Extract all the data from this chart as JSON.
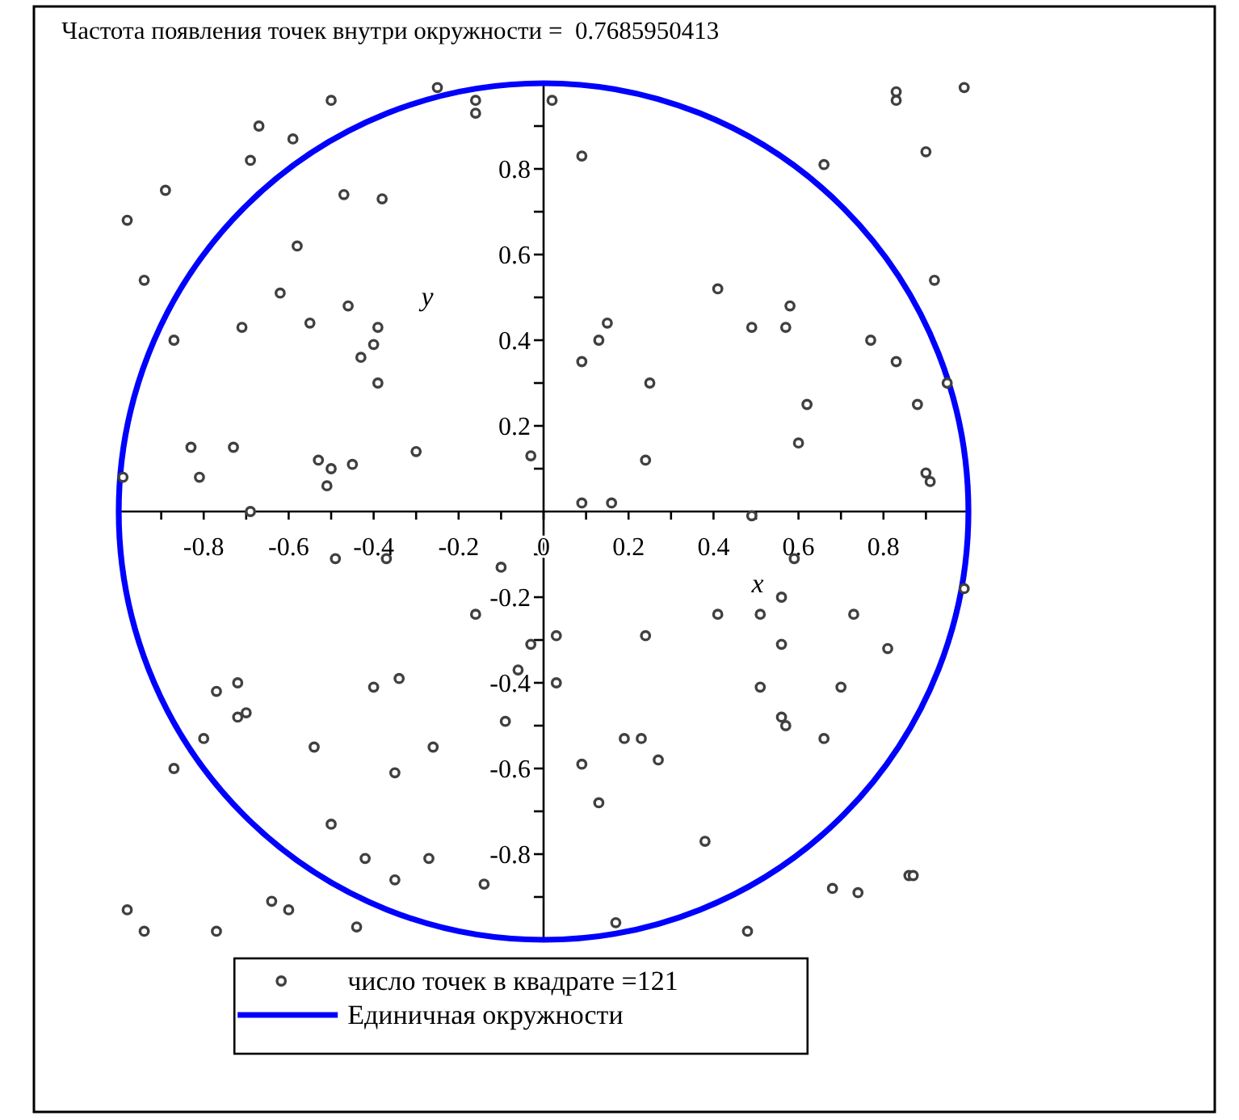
{
  "chart_data": {
    "type": "scatter",
    "title": "Частота появления точек внутри окружности =  0.7685950413",
    "xlabel": "x",
    "ylabel": "y",
    "xlim": [
      -1,
      1
    ],
    "ylim": [
      -1,
      1
    ],
    "xticks": [
      {
        "value": -0.9,
        "label": null
      },
      -0.8,
      {
        "value": -0.7,
        "label": null
      },
      -0.6,
      {
        "value": -0.5,
        "label": null
      },
      -0.4,
      {
        "value": -0.3,
        "label": null
      },
      -0.2,
      {
        "value": -0.1,
        "label": null
      },
      0,
      {
        "value": 0.1,
        "label": null
      },
      0.2,
      {
        "value": 0.3,
        "label": null
      },
      0.4,
      {
        "value": 0.5,
        "label": null
      },
      0.6,
      {
        "value": 0.7,
        "label": null
      },
      0.8,
      {
        "value": 0.9,
        "label": null
      }
    ],
    "yticks": [
      {
        "value": -0.9,
        "label": null
      },
      -0.8,
      {
        "value": -0.7,
        "label": null
      },
      -0.6,
      {
        "value": -0.5,
        "label": null
      },
      -0.4,
      {
        "value": -0.3,
        "label": null
      },
      -0.2,
      {
        "value": -0.1,
        "label": null
      },
      {
        "value": 0.1,
        "label": null
      },
      0.2,
      {
        "value": 0.3,
        "label": null
      },
      0.4,
      {
        "value": 0.5,
        "label": null
      },
      0.6,
      {
        "value": 0.7,
        "label": null
      },
      0.8,
      {
        "value": 0.9,
        "label": null
      }
    ],
    "marker": "circle",
    "legend": "bottom",
    "series": [
      {
        "name": "число точек в квадрате =121",
        "color": "#404040",
        "x": [
          -0.25,
          -0.5,
          -0.16,
          -0.16,
          -0.67,
          -0.59,
          -0.69,
          -0.89,
          -0.47,
          -0.38,
          -0.98,
          -0.58,
          -0.94,
          -0.62,
          -0.46,
          -0.71,
          -0.55,
          -0.39,
          -0.87,
          -0.4,
          -0.43,
          -0.39,
          -0.83,
          -0.73,
          -0.3,
          -0.03,
          -0.53,
          -0.5,
          -0.45,
          -0.51,
          -0.81,
          -0.99,
          -0.69,
          0.02,
          0.83,
          0.83,
          0.99,
          0.9,
          0.09,
          0.66,
          0.92,
          0.41,
          0.58,
          0.49,
          0.57,
          0.77,
          0.15,
          0.13,
          0.09,
          0.83,
          0.25,
          0.95,
          0.62,
          0.88,
          0.24,
          0.6,
          0.9,
          0.91,
          0.09,
          0.16,
          0.49,
          -0.49,
          -0.37,
          -0.1,
          -0.16,
          -0.03,
          -0.06,
          -0.34,
          -0.4,
          -0.72,
          -0.77,
          -0.72,
          -0.7,
          -0.8,
          -0.87,
          -0.54,
          -0.26,
          -0.09,
          -0.35,
          -0.5,
          -0.42,
          -0.27,
          -0.35,
          -0.14,
          -0.64,
          -0.6,
          -0.98,
          -0.94,
          -0.77,
          -0.44,
          0.59,
          0.99,
          0.56,
          0.41,
          0.51,
          0.73,
          0.03,
          0.24,
          0.56,
          0.81,
          0.03,
          0.51,
          0.7,
          0.56,
          0.57,
          0.66,
          0.19,
          0.23,
          0.27,
          0.09,
          0.13,
          0.38,
          0.68,
          0.74,
          0.86,
          0.87,
          0.17,
          0.48
        ],
        "values": [
          0.99,
          0.96,
          0.96,
          0.93,
          0.9,
          0.87,
          0.82,
          0.75,
          0.74,
          0.73,
          0.68,
          0.62,
          0.54,
          0.51,
          0.48,
          0.43,
          0.44,
          0.43,
          0.4,
          0.39,
          0.36,
          0.3,
          0.15,
          0.15,
          0.14,
          0.13,
          0.12,
          0.1,
          0.11,
          0.06,
          0.08,
          0.08,
          0.0,
          0.96,
          0.98,
          0.96,
          0.99,
          0.84,
          0.83,
          0.81,
          0.54,
          0.52,
          0.48,
          0.43,
          0.43,
          0.4,
          0.44,
          0.4,
          0.35,
          0.35,
          0.3,
          0.3,
          0.25,
          0.25,
          0.12,
          0.16,
          0.09,
          0.07,
          0.02,
          0.02,
          -0.01,
          -0.11,
          -0.11,
          -0.13,
          -0.24,
          -0.31,
          -0.37,
          -0.39,
          -0.41,
          -0.4,
          -0.42,
          -0.48,
          -0.47,
          -0.53,
          -0.6,
          -0.55,
          -0.55,
          -0.49,
          -0.61,
          -0.73,
          -0.81,
          -0.81,
          -0.86,
          -0.87,
          -0.91,
          -0.93,
          -0.93,
          -0.98,
          -0.98,
          -0.97,
          -0.11,
          -0.18,
          -0.2,
          -0.24,
          -0.24,
          -0.24,
          -0.29,
          -0.29,
          -0.31,
          -0.32,
          -0.4,
          -0.41,
          -0.41,
          -0.48,
          -0.5,
          -0.53,
          -0.53,
          -0.53,
          -0.58,
          -0.59,
          -0.68,
          -0.77,
          -0.88,
          -0.89,
          -0.85,
          -0.85,
          -0.96,
          -0.98
        ]
      },
      {
        "name": "Единичная окружности",
        "type": "line",
        "color": "#0000ff",
        "line_style": "solid"
      }
    ]
  }
}
